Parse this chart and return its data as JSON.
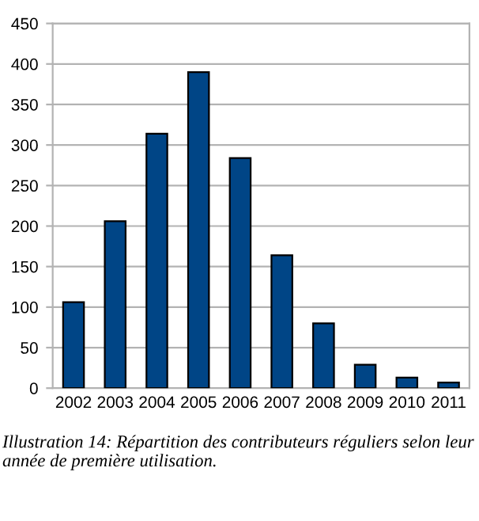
{
  "chart_data": {
    "type": "bar",
    "categories": [
      "2002",
      "2003",
      "2004",
      "2005",
      "2006",
      "2007",
      "2008",
      "2009",
      "2010",
      "2011"
    ],
    "values": [
      106,
      206,
      314,
      390,
      284,
      164,
      80,
      29,
      13,
      7
    ],
    "color": "#004586",
    "ylim": [
      0,
      450
    ],
    "yticks": [
      0,
      50,
      100,
      150,
      200,
      250,
      300,
      350,
      400,
      450
    ],
    "grid": "y",
    "legend": false,
    "annotations": [
      "Illustration 14: Répartition des contributeurs réguliers selon leur année de première utilisation."
    ]
  }
}
